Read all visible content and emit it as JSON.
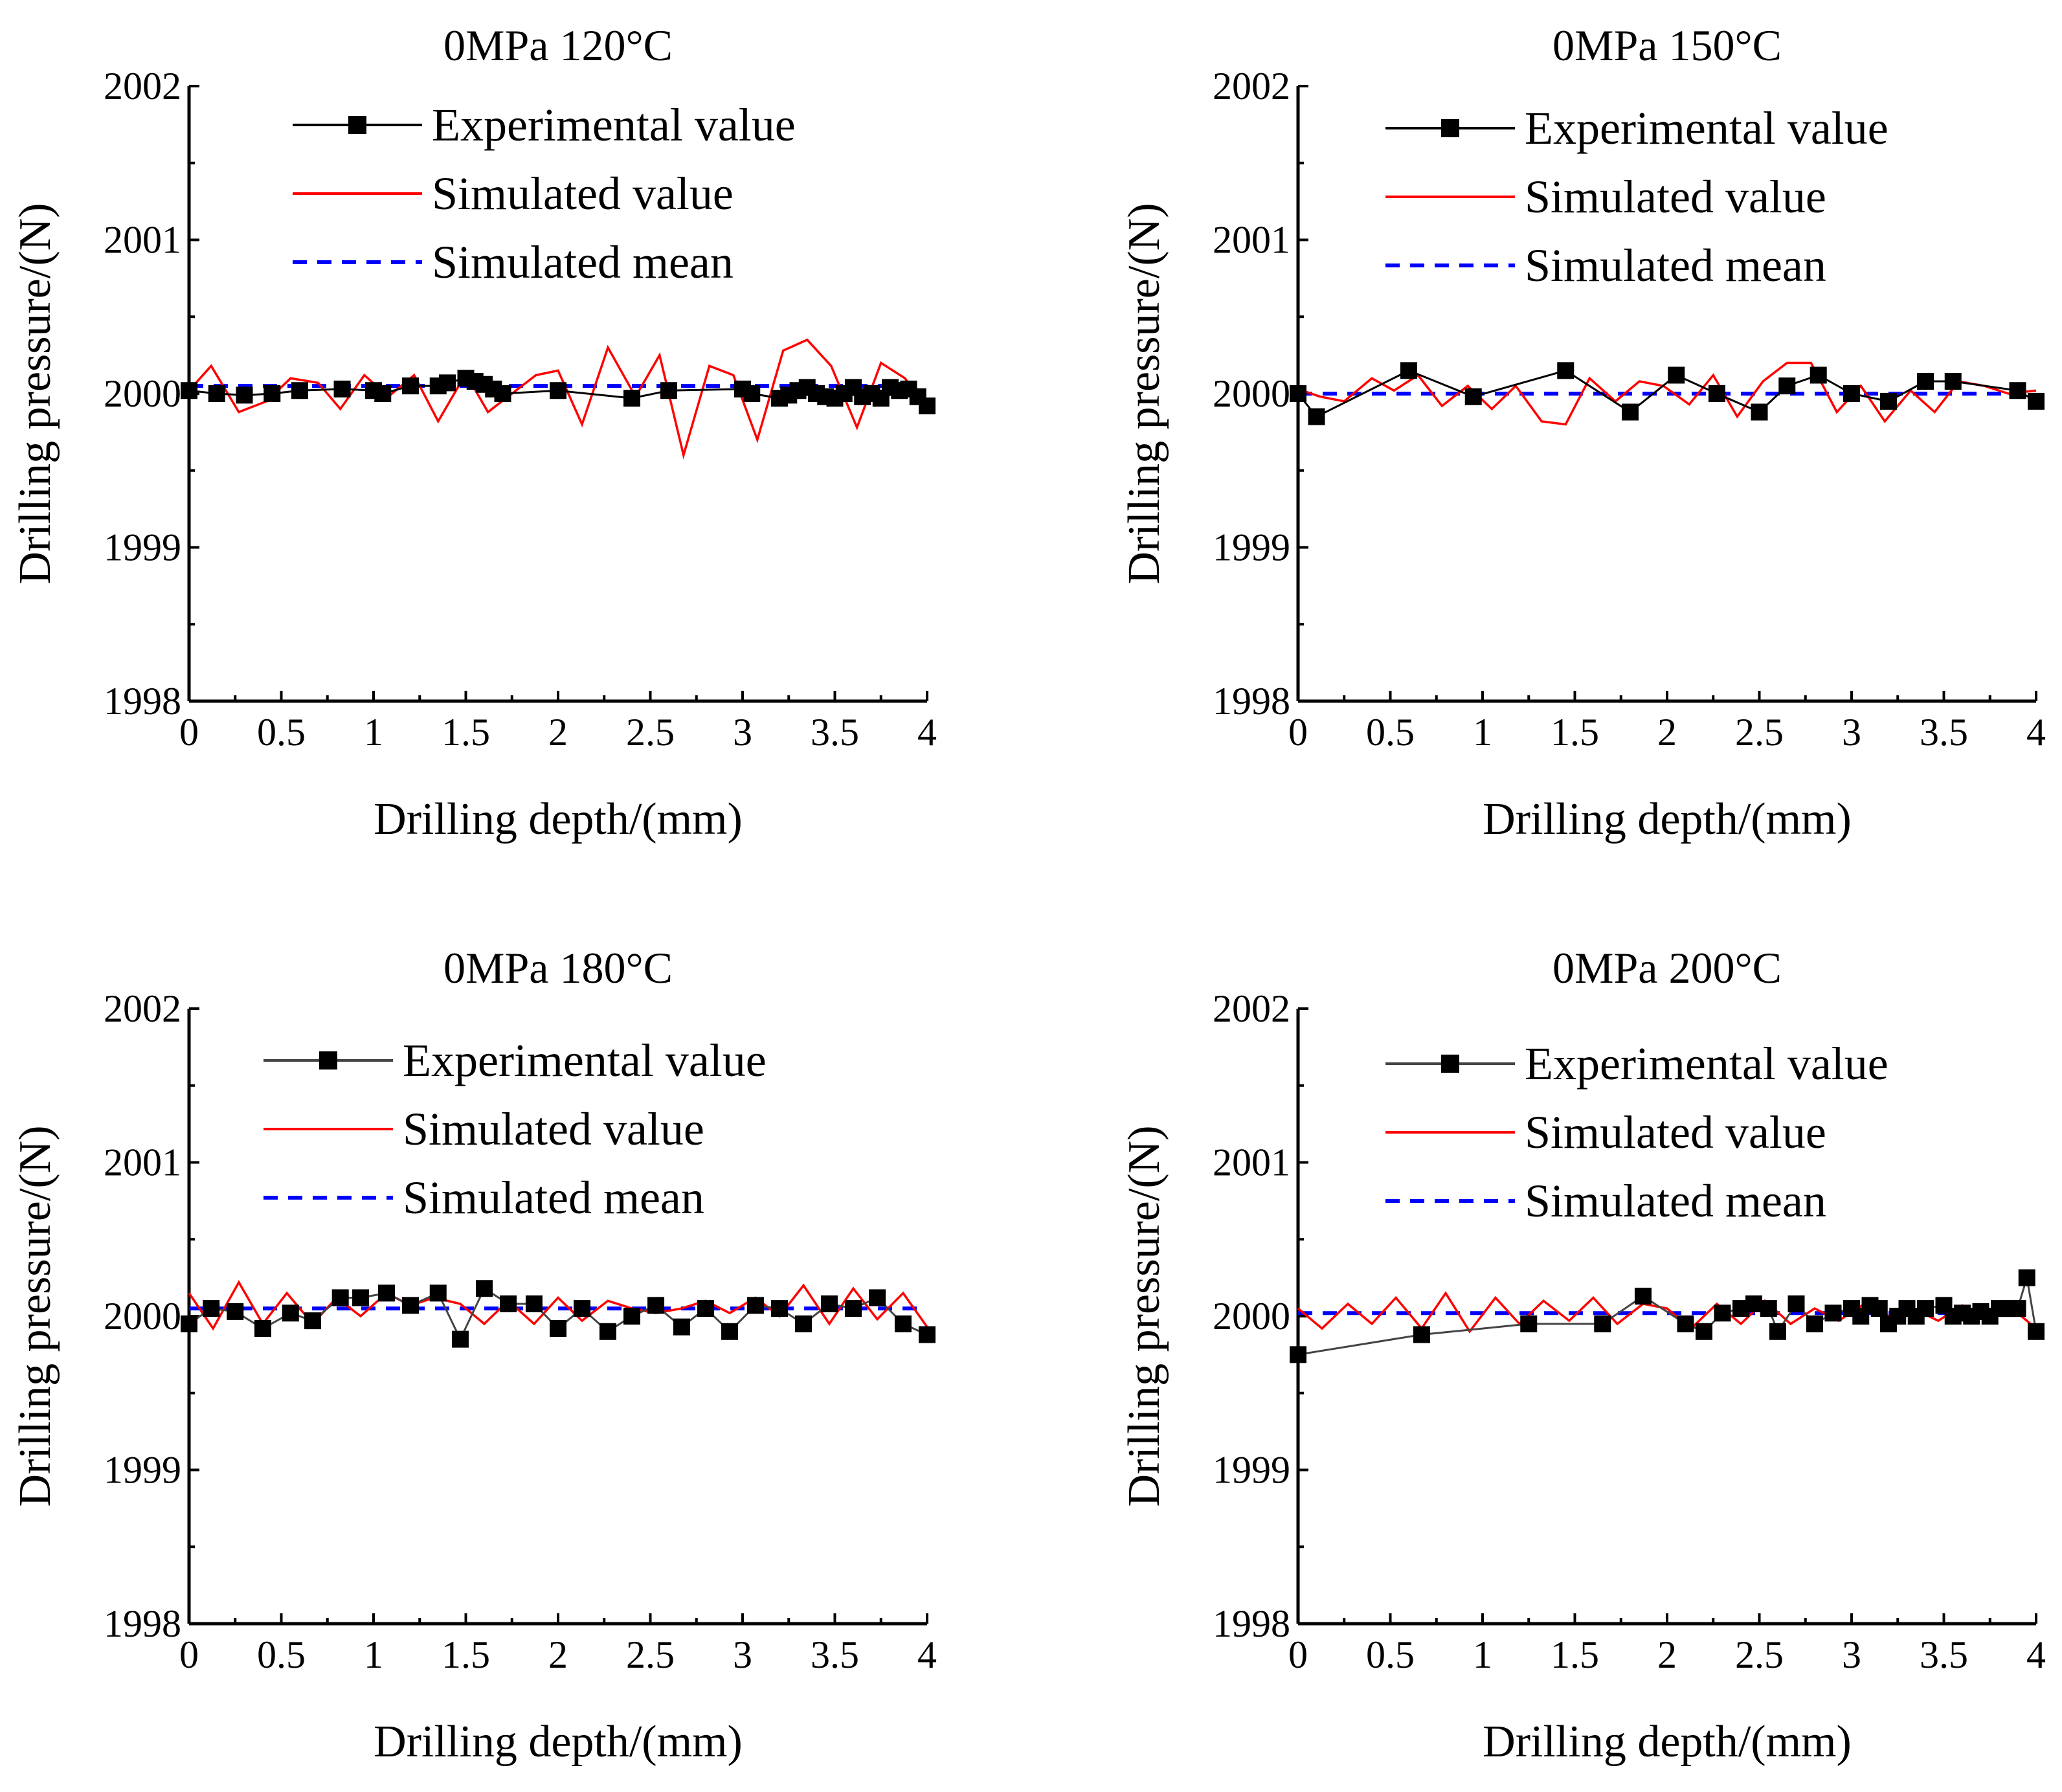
{
  "chart_data": [
    {
      "type": "line",
      "title": "0MPa 120°C",
      "xlabel": "Drilling depth/(mm)",
      "ylabel": "Drilling pressure/(N)",
      "xlim": [
        0,
        4
      ],
      "ylim": [
        1998,
        2002
      ],
      "xticks": [
        "0",
        "0.5",
        "1",
        "1.5",
        "2",
        "2.5",
        "3",
        "3.5",
        "4"
      ],
      "yticks": [
        "1998",
        "1999",
        "2000",
        "2001",
        "2002"
      ],
      "series": [
        {
          "name": "Experimental value",
          "color": "#000000",
          "style": "line-square",
          "x": [
            0,
            0.15,
            0.3,
            0.45,
            0.6,
            0.83,
            1.0,
            1.05,
            1.2,
            1.35,
            1.4,
            1.5,
            1.55,
            1.6,
            1.65,
            1.7,
            2.0,
            2.4,
            2.6,
            3.0,
            3.05,
            3.2,
            3.25,
            3.3,
            3.35,
            3.4,
            3.45,
            3.5,
            3.55,
            3.6,
            3.65,
            3.7,
            3.75,
            3.8,
            3.85,
            3.9,
            3.95,
            4.0
          ],
          "y": [
            2000.02,
            2000.0,
            1999.99,
            2000.0,
            2000.02,
            2000.03,
            2000.02,
            2000.0,
            2000.05,
            2000.05,
            2000.07,
            2000.1,
            2000.08,
            2000.06,
            2000.03,
            2000.0,
            2000.02,
            1999.97,
            2000.02,
            2000.03,
            2000.0,
            1999.97,
            1999.99,
            2000.02,
            2000.04,
            2000.0,
            1999.98,
            1999.97,
            2000.0,
            2000.04,
            1999.98,
            2000.0,
            1999.97,
            2000.04,
            2000.02,
            2000.03,
            1999.98,
            1999.92
          ]
        },
        {
          "name": "Simulated value",
          "color": "#ff0000",
          "style": "line",
          "x": [
            0,
            0.12,
            0.27,
            0.42,
            0.55,
            0.7,
            0.82,
            0.95,
            1.08,
            1.22,
            1.35,
            1.5,
            1.62,
            1.75,
            1.88,
            2.0,
            2.13,
            2.27,
            2.42,
            2.55,
            2.68,
            2.82,
            2.95,
            3.08,
            3.22,
            3.35,
            3.48,
            3.62,
            3.75,
            3.88,
            4.0
          ],
          "y": [
            2000.02,
            2000.18,
            1999.88,
            1999.95,
            2000.1,
            2000.07,
            1999.9,
            2000.12,
            1999.98,
            2000.12,
            1999.82,
            2000.13,
            1999.88,
            2000.0,
            2000.12,
            2000.15,
            1999.8,
            2000.3,
            1999.98,
            2000.25,
            1999.6,
            2000.18,
            2000.12,
            1999.7,
            2000.28,
            2000.35,
            2000.18,
            1999.78,
            2000.2,
            2000.1,
            1999.9
          ]
        },
        {
          "name": "Simulated mean",
          "color": "#0000ff",
          "style": "dash",
          "x": [
            0,
            4
          ],
          "y": [
            2000.05,
            2000.05
          ]
        }
      ]
    },
    {
      "type": "line",
      "title": "0MPa 150°C",
      "xlabel": "Drilling depth/(mm)",
      "ylabel": "Drilling pressure/(N)",
      "xlim": [
        0,
        4
      ],
      "ylim": [
        1998,
        2002
      ],
      "xticks": [
        "0",
        "0.5",
        "1",
        "1.5",
        "2",
        "2.5",
        "3",
        "3.5",
        "4"
      ],
      "yticks": [
        "1998",
        "1999",
        "2000",
        "2001",
        "2002"
      ],
      "series": [
        {
          "name": "Experimental value",
          "color": "#000000",
          "style": "line-square",
          "x": [
            0,
            0.1,
            0.6,
            0.95,
            1.45,
            1.8,
            2.05,
            2.27,
            2.5,
            2.65,
            2.82,
            3.0,
            3.2,
            3.4,
            3.55,
            3.9,
            4.0
          ],
          "y": [
            2000.0,
            1999.85,
            2000.15,
            1999.98,
            2000.15,
            1999.88,
            2000.12,
            2000.0,
            1999.88,
            2000.05,
            2000.12,
            2000.0,
            1999.95,
            2000.08,
            2000.08,
            2000.02,
            1999.95
          ]
        },
        {
          "name": "Simulated value",
          "color": "#ff0000",
          "style": "line",
          "x": [
            0,
            0.12,
            0.25,
            0.4,
            0.52,
            0.65,
            0.78,
            0.92,
            1.05,
            1.18,
            1.32,
            1.45,
            1.58,
            1.72,
            1.85,
            1.98,
            2.12,
            2.25,
            2.38,
            2.52,
            2.65,
            2.78,
            2.92,
            3.05,
            3.18,
            3.32,
            3.45,
            3.58,
            3.72,
            3.85,
            4.0
          ],
          "y": [
            2000.03,
            1999.98,
            1999.95,
            2000.1,
            2000.02,
            2000.12,
            1999.92,
            2000.05,
            1999.9,
            2000.05,
            1999.82,
            1999.8,
            2000.1,
            1999.95,
            2000.08,
            2000.05,
            1999.93,
            2000.12,
            1999.85,
            2000.08,
            2000.2,
            2000.2,
            1999.88,
            2000.05,
            1999.82,
            2000.02,
            1999.88,
            2000.08,
            2000.05,
            2000.0,
            2000.02
          ]
        },
        {
          "name": "Simulated mean",
          "color": "#0000ff",
          "style": "dash",
          "x": [
            0,
            4
          ],
          "y": [
            2000.0,
            2000.0
          ]
        }
      ]
    },
    {
      "type": "line",
      "title": "0MPa 180°C",
      "xlabel": "Drilling depth/(mm)",
      "ylabel": "Drilling pressure/(N)",
      "xlim": [
        0,
        4
      ],
      "ylim": [
        1998,
        2002
      ],
      "xticks": [
        "0",
        "0.5",
        "1",
        "1.5",
        "2",
        "2.5",
        "3",
        "3.5",
        "4"
      ],
      "yticks": [
        "1998",
        "1999",
        "2000",
        "2001",
        "2002"
      ],
      "series": [
        {
          "name": "Experimental value",
          "color": "#444444",
          "style": "line-square",
          "x": [
            0,
            0.12,
            0.25,
            0.4,
            0.55,
            0.67,
            0.82,
            0.93,
            1.07,
            1.2,
            1.35,
            1.47,
            1.6,
            1.73,
            1.87,
            2.0,
            2.13,
            2.27,
            2.4,
            2.53,
            2.67,
            2.8,
            2.93,
            3.07,
            3.2,
            3.33,
            3.47,
            3.6,
            3.73,
            3.87,
            4.0
          ],
          "y": [
            1999.95,
            2000.05,
            2000.03,
            1999.92,
            2000.02,
            1999.97,
            2000.12,
            2000.12,
            2000.15,
            2000.07,
            2000.15,
            1999.85,
            2000.18,
            2000.08,
            2000.08,
            1999.92,
            2000.05,
            1999.9,
            2000.0,
            2000.07,
            1999.93,
            2000.05,
            1999.9,
            2000.07,
            2000.05,
            1999.95,
            2000.08,
            2000.05,
            2000.12,
            1999.95,
            1999.88
          ]
        },
        {
          "name": "Simulated value",
          "color": "#ff0000",
          "style": "line",
          "x": [
            0,
            0.13,
            0.27,
            0.4,
            0.53,
            0.67,
            0.8,
            0.93,
            1.07,
            1.2,
            1.33,
            1.47,
            1.6,
            1.73,
            1.87,
            2.0,
            2.13,
            2.27,
            2.4,
            2.53,
            2.67,
            2.8,
            2.93,
            3.07,
            3.2,
            3.33,
            3.47,
            3.6,
            3.73,
            3.87,
            4.0
          ],
          "y": [
            2000.15,
            1999.92,
            2000.22,
            1999.95,
            2000.15,
            1999.95,
            2000.12,
            2000.0,
            2000.15,
            2000.07,
            2000.12,
            2000.08,
            1999.95,
            2000.1,
            1999.95,
            2000.12,
            1999.97,
            2000.1,
            2000.05,
            2000.02,
            2000.05,
            2000.1,
            2000.02,
            2000.12,
            2000.0,
            2000.2,
            1999.95,
            2000.18,
            1999.98,
            2000.15,
            1999.93
          ]
        },
        {
          "name": "Simulated mean",
          "color": "#0000ff",
          "style": "dash",
          "x": [
            0,
            4
          ],
          "y": [
            2000.05,
            2000.05
          ]
        }
      ]
    },
    {
      "type": "line",
      "title": "0MPa 200°C",
      "xlabel": "Drilling depth/(mm)",
      "ylabel": "Drilling pressure/(N)",
      "xlim": [
        0,
        4
      ],
      "ylim": [
        1998,
        2002
      ],
      "xticks": [
        "0",
        "0.5",
        "1",
        "1.5",
        "2",
        "2.5",
        "3",
        "3.5",
        "4"
      ],
      "yticks": [
        "1998",
        "1999",
        "2000",
        "2001",
        "2002"
      ],
      "series": [
        {
          "name": "Experimental value",
          "color": "#444444",
          "style": "line-square",
          "x": [
            0,
            0.67,
            1.25,
            1.65,
            1.87,
            2.1,
            2.2,
            2.3,
            2.4,
            2.47,
            2.55,
            2.6,
            2.7,
            2.8,
            2.9,
            3.0,
            3.05,
            3.1,
            3.15,
            3.2,
            3.25,
            3.3,
            3.35,
            3.4,
            3.5,
            3.55,
            3.6,
            3.65,
            3.7,
            3.75,
            3.8,
            3.85,
            3.9,
            3.95,
            4.0
          ],
          "y": [
            1999.75,
            1999.88,
            1999.95,
            1999.95,
            2000.13,
            1999.95,
            1999.9,
            2000.02,
            2000.05,
            2000.08,
            2000.05,
            1999.9,
            2000.08,
            1999.95,
            2000.02,
            2000.05,
            2000.0,
            2000.07,
            2000.05,
            1999.95,
            2000.0,
            2000.05,
            2000.0,
            2000.05,
            2000.07,
            2000.0,
            2000.02,
            2000.0,
            2000.03,
            2000.0,
            2000.05,
            2000.05,
            2000.05,
            2000.25,
            1999.9
          ]
        },
        {
          "name": "Simulated value",
          "color": "#ff0000",
          "style": "line",
          "x": [
            0,
            0.13,
            0.27,
            0.4,
            0.53,
            0.67,
            0.8,
            0.93,
            1.07,
            1.2,
            1.33,
            1.47,
            1.6,
            1.73,
            1.87,
            2.0,
            2.13,
            2.27,
            2.4,
            2.53,
            2.67,
            2.8,
            2.93,
            3.07,
            3.2,
            3.33,
            3.47,
            3.6,
            3.73,
            3.87,
            4.0
          ],
          "y": [
            2000.05,
            1999.92,
            2000.08,
            1999.95,
            2000.12,
            1999.92,
            2000.15,
            1999.9,
            2000.12,
            1999.95,
            2000.1,
            1999.97,
            2000.12,
            1999.95,
            2000.08,
            2000.05,
            1999.92,
            2000.08,
            1999.95,
            2000.1,
            1999.95,
            2000.05,
            1999.97,
            2000.08,
            2000.0,
            2000.05,
            1999.97,
            2000.07,
            2000.0,
            2000.05,
            1999.92
          ]
        },
        {
          "name": "Simulated mean",
          "color": "#0000ff",
          "style": "dash",
          "x": [
            0,
            4
          ],
          "y": [
            2000.02,
            2000.02
          ]
        }
      ]
    }
  ]
}
